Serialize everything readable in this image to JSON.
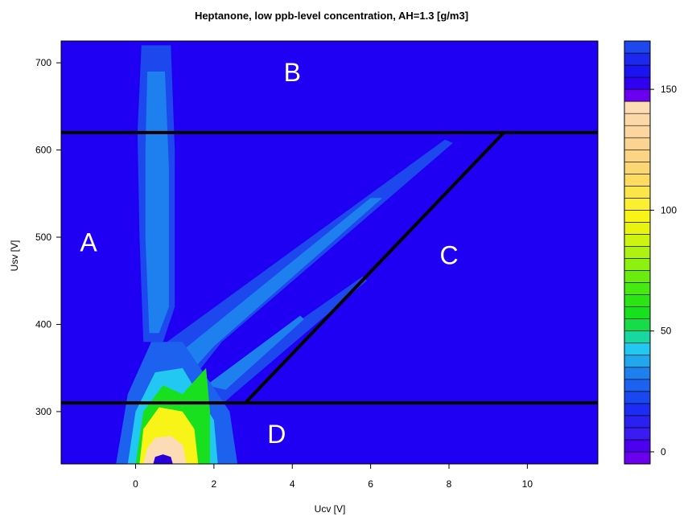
{
  "chart_data": {
    "type": "heatmap",
    "title": "Heptanone, low ppb-level concentration, AH=1.3 [g/m3]",
    "xlabel": "Ucv [V]",
    "ylabel": "Usv [V]",
    "xlim": [
      -1.9,
      11.8
    ],
    "ylim": [
      240,
      725
    ],
    "x_ticks": [
      0,
      2,
      4,
      6,
      8,
      10
    ],
    "y_ticks": [
      300,
      400,
      500,
      600,
      700
    ],
    "colorbar": {
      "range": [
        -5,
        170
      ],
      "ticks": [
        0,
        50,
        100,
        150
      ],
      "levels": [
        {
          "from": -5,
          "to": 0,
          "color": "#6a00ee"
        },
        {
          "from": 0,
          "to": 5,
          "color": "#4c00f0"
        },
        {
          "from": 5,
          "to": 10,
          "color": "#3a1cf2"
        },
        {
          "from": 10,
          "to": 15,
          "color": "#2a20f2"
        },
        {
          "from": 15,
          "to": 20,
          "color": "#1c2cf2"
        },
        {
          "from": 20,
          "to": 25,
          "color": "#1a48f0"
        },
        {
          "from": 25,
          "to": 30,
          "color": "#1c62ef"
        },
        {
          "from": 30,
          "to": 35,
          "color": "#1e80ee"
        },
        {
          "from": 35,
          "to": 40,
          "color": "#22a6ec"
        },
        {
          "from": 40,
          "to": 45,
          "color": "#22c8f2"
        },
        {
          "from": 45,
          "to": 50,
          "color": "#1ad6a0"
        },
        {
          "from": 50,
          "to": 55,
          "color": "#16dc4a"
        },
        {
          "from": 55,
          "to": 60,
          "color": "#18e01e"
        },
        {
          "from": 60,
          "to": 65,
          "color": "#2ae414"
        },
        {
          "from": 65,
          "to": 70,
          "color": "#48e812"
        },
        {
          "from": 70,
          "to": 75,
          "color": "#6aec10"
        },
        {
          "from": 75,
          "to": 80,
          "color": "#8cf010"
        },
        {
          "from": 80,
          "to": 85,
          "color": "#aef210"
        },
        {
          "from": 85,
          "to": 90,
          "color": "#ccf410"
        },
        {
          "from": 90,
          "to": 95,
          "color": "#e8f410"
        },
        {
          "from": 95,
          "to": 100,
          "color": "#f8f418"
        },
        {
          "from": 100,
          "to": 105,
          "color": "#fbf030"
        },
        {
          "from": 105,
          "to": 110,
          "color": "#fbe64a"
        },
        {
          "from": 110,
          "to": 115,
          "color": "#fbdc60"
        },
        {
          "from": 115,
          "to": 120,
          "color": "#fbd674"
        },
        {
          "from": 120,
          "to": 125,
          "color": "#fbd484"
        },
        {
          "from": 125,
          "to": 130,
          "color": "#fbd492"
        },
        {
          "from": 130,
          "to": 135,
          "color": "#fbd69e"
        },
        {
          "from": 135,
          "to": 140,
          "color": "#fbd8a8"
        },
        {
          "from": 140,
          "to": 145,
          "color": "#fcdcb4"
        },
        {
          "from": 145,
          "to": 150,
          "color": "#6a00ee"
        },
        {
          "from": 150,
          "to": 155,
          "color": "#3000f0"
        },
        {
          "from": 155,
          "to": 160,
          "color": "#1c14f0"
        },
        {
          "from": 160,
          "to": 165,
          "color": "#1c28ee"
        },
        {
          "from": 165,
          "to": 170,
          "color": "#1c48ee"
        }
      ]
    },
    "background_color": "#2000f2",
    "features": [
      {
        "name": "vertical-branch",
        "color": "#1c48ee",
        "poly": [
          [
            0.15,
            720
          ],
          [
            0.9,
            720
          ],
          [
            1.0,
            600
          ],
          [
            1.0,
            420
          ],
          [
            0.7,
            380
          ],
          [
            0.2,
            380
          ],
          [
            0.1,
            500
          ],
          [
            0.05,
            620
          ]
        ]
      },
      {
        "name": "vertical-branch-core",
        "color": "#1e80ee",
        "poly": [
          [
            0.3,
            690
          ],
          [
            0.75,
            690
          ],
          [
            0.85,
            580
          ],
          [
            0.85,
            420
          ],
          [
            0.6,
            390
          ],
          [
            0.35,
            390
          ],
          [
            0.25,
            500
          ],
          [
            0.25,
            600
          ]
        ]
      },
      {
        "name": "upper-diagonal-branch",
        "color": "#1c48ee",
        "poly": [
          [
            0.8,
            380
          ],
          [
            7.9,
            612
          ],
          [
            8.1,
            608
          ],
          [
            2.2,
            380
          ],
          [
            1.5,
            340
          ],
          [
            0.9,
            330
          ]
        ]
      },
      {
        "name": "upper-diagonal-core",
        "color": "#1e80ee",
        "poly": [
          [
            1.2,
            370
          ],
          [
            6.0,
            545
          ],
          [
            6.3,
            545
          ],
          [
            2.0,
            375
          ],
          [
            1.5,
            350
          ]
        ]
      },
      {
        "name": "lower-diagonal-branch",
        "color": "#1c48ee",
        "poly": [
          [
            1.5,
            320
          ],
          [
            5.8,
            455
          ],
          [
            5.9,
            450
          ],
          [
            2.5,
            320
          ],
          [
            2.0,
            300
          ]
        ]
      },
      {
        "name": "lower-diagonal-core",
        "color": "#1e80ee",
        "poly": [
          [
            1.8,
            330
          ],
          [
            4.2,
            410
          ],
          [
            4.3,
            406
          ],
          [
            2.3,
            325
          ]
        ]
      },
      {
        "name": "base-plume",
        "color": "#1c62ef",
        "poly": [
          [
            -0.5,
            240
          ],
          [
            2.6,
            240
          ],
          [
            2.4,
            300
          ],
          [
            1.8,
            340
          ],
          [
            1.2,
            380
          ],
          [
            0.4,
            380
          ],
          [
            -0.2,
            320
          ]
        ]
      },
      {
        "name": "base-plume-cyan",
        "color": "#22c8f2",
        "poly": [
          [
            -0.2,
            240
          ],
          [
            2.1,
            240
          ],
          [
            2.0,
            290
          ],
          [
            1.6,
            320
          ],
          [
            1.2,
            350
          ],
          [
            0.5,
            345
          ],
          [
            0.0,
            300
          ]
        ]
      },
      {
        "name": "base-plume-green",
        "color": "#18e01e",
        "poly": [
          [
            0.0,
            240
          ],
          [
            1.9,
            240
          ],
          [
            1.9,
            300
          ],
          [
            1.8,
            350
          ],
          [
            1.2,
            320
          ],
          [
            0.7,
            330
          ],
          [
            0.2,
            300
          ]
        ]
      },
      {
        "name": "base-plume-yellow",
        "color": "#f8f418",
        "poly": [
          [
            0.1,
            240
          ],
          [
            1.6,
            240
          ],
          [
            1.5,
            280
          ],
          [
            1.2,
            300
          ],
          [
            0.6,
            305
          ],
          [
            0.2,
            280
          ]
        ]
      },
      {
        "name": "base-plume-peach",
        "color": "#fcdcb4",
        "poly": [
          [
            0.2,
            240
          ],
          [
            1.3,
            240
          ],
          [
            1.2,
            262
          ],
          [
            0.9,
            272
          ],
          [
            0.5,
            270
          ],
          [
            0.3,
            258
          ]
        ]
      },
      {
        "name": "base-spot",
        "color": "#2a00d8",
        "poly": [
          [
            0.45,
            240
          ],
          [
            0.95,
            240
          ],
          [
            0.9,
            248
          ],
          [
            0.7,
            251
          ],
          [
            0.5,
            248
          ]
        ]
      }
    ],
    "annotations": [
      {
        "text": "A",
        "x": -1.2,
        "y": 495
      },
      {
        "text": "B",
        "x": 4.0,
        "y": 690
      },
      {
        "text": "C",
        "x": 8.0,
        "y": 480
      },
      {
        "text": "D",
        "x": 3.6,
        "y": 275
      }
    ],
    "lines": [
      {
        "name": "upper-boundary-line",
        "x": [
          -1.9,
          11.8
        ],
        "y": [
          620,
          620
        ]
      },
      {
        "name": "lower-boundary-line",
        "x": [
          -1.9,
          11.8
        ],
        "y": [
          310,
          310
        ]
      },
      {
        "name": "diagonal-boundary-line",
        "x": [
          2.8,
          9.4
        ],
        "y": [
          310,
          620
        ]
      }
    ]
  }
}
